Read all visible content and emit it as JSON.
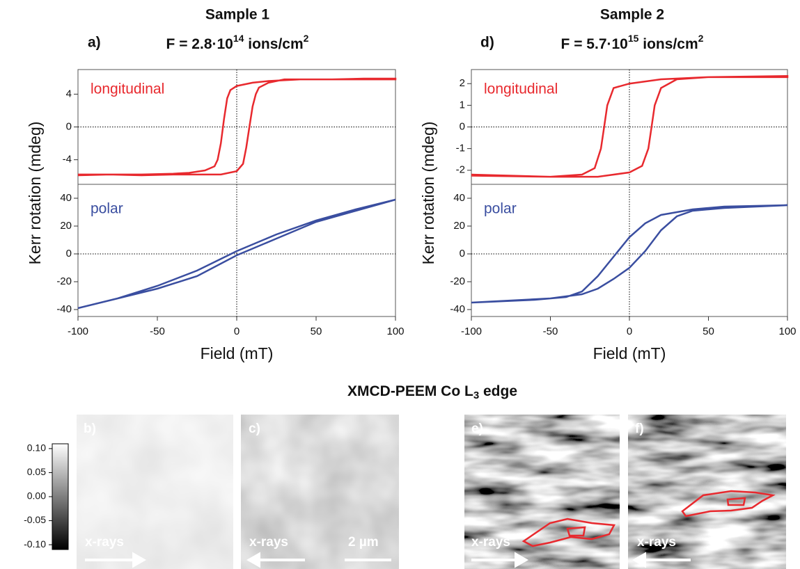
{
  "samples": [
    {
      "title": "Sample 1",
      "panel": "a)",
      "fluence": [
        "F = 2.8·10",
        "14",
        " ions/cm",
        "2"
      ]
    },
    {
      "title": "Sample 2",
      "panel": "d)",
      "fluence": [
        "F = 5.7·10",
        "15",
        " ions/cm",
        "2"
      ]
    }
  ],
  "chart_data": [
    {
      "type": "line",
      "xlim": [
        -100,
        100
      ],
      "ylim": [
        -7,
        7
      ],
      "yticks": [
        -4,
        0,
        4
      ],
      "series": [
        {
          "name": "longitudinal",
          "color": "#e8292e",
          "x": [
            -100,
            -80,
            -60,
            -40,
            -20,
            -10,
            0,
            4,
            6,
            8,
            10,
            12,
            14,
            20,
            30,
            40,
            60,
            80,
            100,
            100,
            80,
            60,
            40,
            20,
            10,
            0,
            -4,
            -6,
            -8,
            -10,
            -12,
            -14,
            -20,
            -30,
            -40,
            -60,
            -80,
            -100
          ],
          "values": [
            -5.8,
            -5.8,
            -5.9,
            -5.8,
            -5.8,
            -5.8,
            -5.4,
            -4.5,
            -2.5,
            0,
            2.5,
            4,
            4.8,
            5.4,
            5.8,
            5.8,
            5.8,
            5.8,
            5.8,
            5.9,
            5.9,
            5.8,
            5.8,
            5.6,
            5.4,
            5.0,
            4.5,
            3.5,
            1,
            -2,
            -4,
            -4.8,
            -5.3,
            -5.6,
            -5.7,
            -5.8,
            -5.8,
            -5.9
          ]
        }
      ]
    },
    {
      "type": "line",
      "xlim": [
        -100,
        100
      ],
      "ylim": [
        -45,
        50
      ],
      "yticks": [
        -40,
        -20,
        0,
        20,
        40
      ],
      "xticks": [
        -100,
        -50,
        0,
        50,
        100
      ],
      "x_label": "Field (mT)",
      "y_label": "Kerr rotation (mdeg)",
      "series": [
        {
          "name": "polar",
          "color": "#3a4ea0",
          "x": [
            -100,
            -75,
            -50,
            -25,
            0,
            25,
            50,
            75,
            100,
            100,
            75,
            50,
            25,
            0,
            -25,
            -50,
            -75,
            -100
          ],
          "values": [
            -39,
            -32,
            -25,
            -16,
            -1,
            11,
            23,
            31,
            39,
            39,
            32,
            24,
            14,
            2,
            -12,
            -23,
            -32,
            -39
          ]
        }
      ]
    },
    {
      "type": "line",
      "xlim": [
        -100,
        100
      ],
      "ylim": [
        -2.65,
        2.65
      ],
      "yticks": [
        -2,
        -1,
        0,
        1,
        2
      ],
      "series": [
        {
          "name": "longitudinal",
          "color": "#e8292e",
          "x": [
            -100,
            -50,
            -20,
            0,
            8,
            12,
            14,
            16,
            20,
            30,
            50,
            100,
            100,
            50,
            20,
            0,
            -10,
            -14,
            -16,
            -18,
            -22,
            -30,
            -50,
            -100
          ],
          "values": [
            -2.25,
            -2.3,
            -2.3,
            -2.1,
            -1.8,
            -1,
            0,
            1,
            1.8,
            2.2,
            2.3,
            2.3,
            2.35,
            2.3,
            2.2,
            2.0,
            1.8,
            1,
            0,
            -1,
            -1.9,
            -2.2,
            -2.3,
            -2.2
          ]
        }
      ]
    },
    {
      "type": "line",
      "xlim": [
        -100,
        100
      ],
      "ylim": [
        -45,
        50
      ],
      "yticks": [
        -40,
        -20,
        0,
        20,
        40
      ],
      "xticks": [
        -100,
        -50,
        0,
        50,
        100
      ],
      "x_label": "Field (mT)",
      "y_label": "Kerr rotation (mdeg)",
      "series": [
        {
          "name": "polar",
          "color": "#3a4ea0",
          "x": [
            -100,
            -50,
            -30,
            -20,
            -10,
            0,
            10,
            20,
            30,
            40,
            60,
            100,
            100,
            60,
            40,
            20,
            10,
            0,
            -10,
            -20,
            -30,
            -40,
            -60,
            -100
          ],
          "values": [
            -35,
            -32,
            -29,
            -25,
            -18,
            -10,
            2,
            17,
            27,
            31,
            33,
            35,
            35,
            34,
            32,
            28,
            22,
            12,
            -2,
            -16,
            -27,
            -31,
            -33,
            -35
          ]
        }
      ]
    }
  ],
  "peem": {
    "title": [
      "XMCD-PEEM Co L",
      "3",
      " edge"
    ],
    "panels": [
      {
        "label": "b)",
        "beam": "x-rays"
      },
      {
        "label": "c)",
        "beam": "x-rays",
        "scale": "2 µm"
      },
      {
        "label": "e)",
        "beam": "x-rays"
      },
      {
        "label": "f)",
        "beam": "x-rays"
      }
    ],
    "colorbar": {
      "lim": [
        -0.11,
        0.11
      ],
      "ticks": [
        {
          "value": 0.1,
          "label": "0.10"
        },
        {
          "value": 0.05,
          "label": "0.05"
        },
        {
          "value": 0,
          "label": "0.00"
        },
        {
          "value": -0.05,
          "label": "-0.05"
        },
        {
          "value": -0.1,
          "label": "-0.10"
        }
      ]
    }
  }
}
